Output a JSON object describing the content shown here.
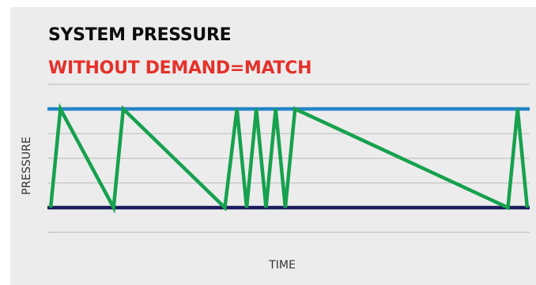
{
  "chart_data": {
    "type": "line",
    "title": "SYSTEM PRESSURE",
    "subtitle": "WITHOUT DEMAND=MATCH",
    "xlabel": "TIME",
    "ylabel": "PRESSURE",
    "grid": true,
    "legend": "none",
    "ylim": [
      0,
      1
    ],
    "reference_lines": [
      {
        "value": 1,
        "color": "#2585c9"
      },
      {
        "value": 0,
        "color": "#1a1a5e"
      }
    ],
    "series": [
      {
        "color": "#16a14e",
        "points": [
          [
            0.01,
            0
          ],
          [
            0.03,
            1
          ],
          [
            0.14,
            0
          ],
          [
            0.16,
            1
          ],
          [
            0.37,
            0
          ],
          [
            0.395,
            1
          ],
          [
            0.415,
            0
          ],
          [
            0.435,
            1
          ],
          [
            0.455,
            0
          ],
          [
            0.475,
            1
          ],
          [
            0.495,
            0
          ],
          [
            0.515,
            1
          ],
          [
            0.955,
            0
          ],
          [
            0.975,
            1
          ],
          [
            0.995,
            0
          ]
        ]
      }
    ]
  },
  "colors": {
    "background": "#ececec",
    "title": "#0c0c0c",
    "subtitle": "#e5312a",
    "grid": "#c4c4c4",
    "max_line": "#2585c9",
    "min_line": "#1a1a5e",
    "series": "#16a14e"
  }
}
